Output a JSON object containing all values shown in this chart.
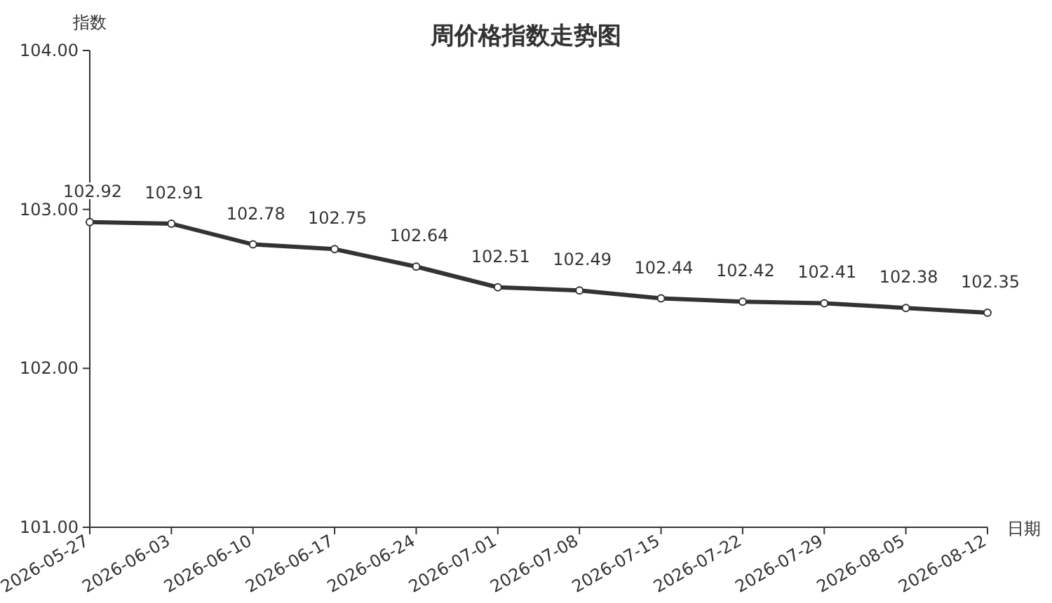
{
  "chart_data": {
    "type": "line",
    "title": "周价格指数走势图",
    "xlabel": "日期",
    "ylabel": "指数",
    "categories": [
      "2026-05-27",
      "2026-06-03",
      "2026-06-10",
      "2026-06-17",
      "2026-06-24",
      "2026-07-01",
      "2026-07-08",
      "2026-07-15",
      "2026-07-22",
      "2026-07-29",
      "2026-08-05",
      "2026-08-12"
    ],
    "series": [
      {
        "color": "#333333",
        "values": [
          102.92,
          102.91,
          102.78,
          102.75,
          102.64,
          102.51,
          102.49,
          102.44,
          102.42,
          102.41,
          102.38,
          102.35
        ]
      }
    ],
    "ylim": [
      101,
      104
    ],
    "yticks": [
      {
        "value": 101,
        "label": "101.00"
      },
      {
        "value": 102,
        "label": "102.00"
      },
      {
        "value": 103,
        "label": "103.00"
      },
      {
        "value": 104,
        "label": "104.00"
      }
    ],
    "data_labels": true,
    "marker": "circle",
    "grid": false
  }
}
